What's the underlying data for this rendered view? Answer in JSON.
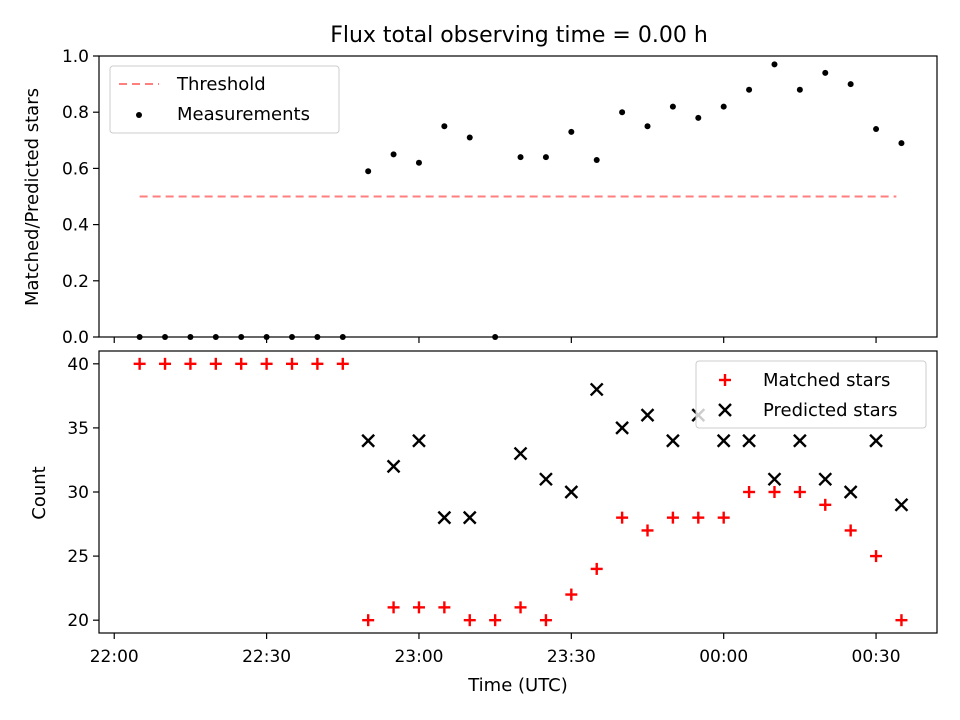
{
  "figure": {
    "title": "Flux total observing time = 0.00 h"
  },
  "chart_data": [
    {
      "type": "scatter",
      "ylabel": "Matched/Predicted stars",
      "xlim": [
        -3,
        162
      ],
      "ylim": [
        0,
        1.0
      ],
      "ytick_labels": [
        "0.0",
        "0.2",
        "0.4",
        "0.6",
        "0.8",
        "1.0"
      ],
      "yticks": [
        0,
        0.2,
        0.4,
        0.6,
        0.8,
        1.0
      ],
      "xticks": [
        0,
        30,
        60,
        90,
        120,
        150
      ],
      "legend": {
        "placement": "top-left",
        "entries": [
          "Threshold",
          "Measurements"
        ]
      },
      "threshold": {
        "name": "Threshold",
        "y": 0.5,
        "x_range": [
          5,
          154
        ],
        "color": "#ff7f7f",
        "style": "dashed"
      },
      "series": [
        {
          "name": "Measurements",
          "color": "#000000",
          "x": [
            5,
            10,
            15,
            20,
            25,
            30,
            35,
            40,
            45,
            50,
            55,
            60,
            65,
            70,
            75,
            80,
            85,
            90,
            95,
            100,
            105,
            110,
            115,
            120,
            125,
            130,
            135,
            140,
            145,
            150,
            155
          ],
          "y": [
            0,
            0,
            0,
            0,
            0,
            0,
            0,
            0,
            0,
            0.59,
            0.65,
            0.62,
            0.75,
            0.71,
            0,
            0.64,
            0.64,
            0.73,
            0.63,
            0.8,
            0.75,
            0.82,
            0.78,
            0.82,
            0.88,
            0.97,
            0.88,
            0.94,
            0.9,
            0.74,
            0.69
          ]
        }
      ]
    },
    {
      "type": "scatter",
      "xlabel": "Time (UTC)",
      "ylabel": "Count",
      "xlim": [
        -3,
        162
      ],
      "ylim": [
        19,
        41
      ],
      "ytick_labels": [
        "20",
        "25",
        "30",
        "35",
        "40"
      ],
      "yticks": [
        20,
        25,
        30,
        35,
        40
      ],
      "xticks": [
        0,
        30,
        60,
        90,
        120,
        150
      ],
      "xtick_labels": [
        "22:00",
        "22:30",
        "23:00",
        "23:30",
        "00:00",
        "00:30"
      ],
      "legend": {
        "placement": "top-right",
        "entries": [
          "Matched stars",
          "Predicted stars"
        ]
      },
      "series": [
        {
          "name": "Matched stars",
          "marker": "plus",
          "color": "#ff0000",
          "x": [
            5,
            10,
            15,
            20,
            25,
            30,
            35,
            40,
            45,
            50,
            55,
            60,
            65,
            70,
            75,
            80,
            85,
            90,
            95,
            100,
            105,
            110,
            115,
            120,
            125,
            130,
            135,
            140,
            145,
            150,
            155
          ],
          "y": [
            40,
            40,
            40,
            40,
            40,
            40,
            40,
            40,
            40,
            20,
            21,
            21,
            21,
            20,
            20,
            21,
            20,
            22,
            24,
            28,
            27,
            28,
            28,
            28,
            30,
            30,
            30,
            29,
            27,
            25,
            20
          ]
        },
        {
          "name": "Predicted stars",
          "marker": "x",
          "color": "#000000",
          "x": [
            50,
            55,
            60,
            65,
            70,
            80,
            85,
            90,
            95,
            100,
            105,
            110,
            115,
            120,
            125,
            130,
            135,
            140,
            145,
            150,
            155
          ],
          "y": [
            34,
            32,
            34,
            28,
            28,
            33,
            31,
            30,
            38,
            35,
            36,
            34,
            36,
            34,
            34,
            31,
            34,
            31,
            30,
            34,
            29
          ]
        }
      ]
    }
  ]
}
